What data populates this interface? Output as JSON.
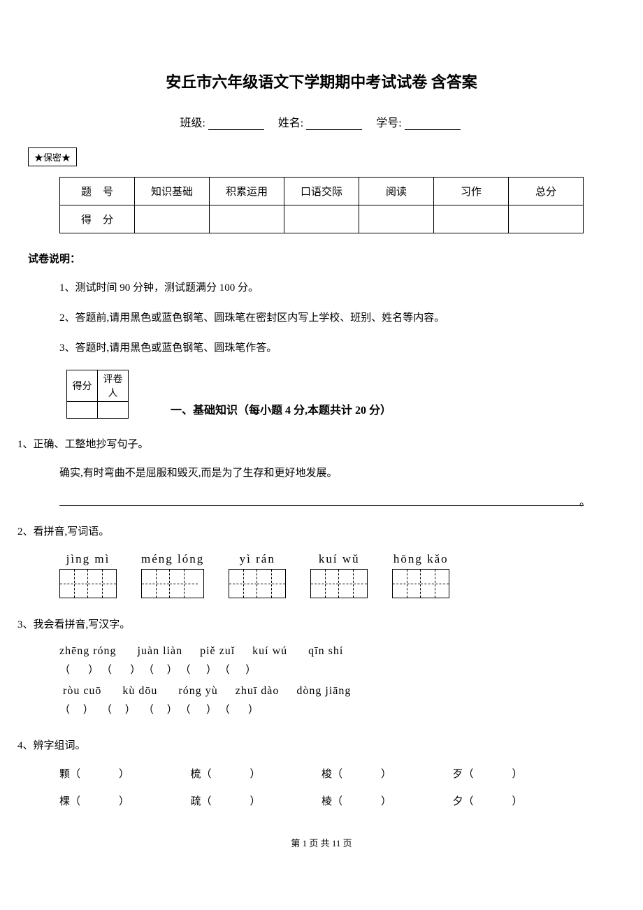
{
  "title": "安丘市六年级语文下学期期中考试试卷 含答案",
  "info": {
    "class_label": "班级:",
    "name_label": "姓名:",
    "id_label": "学号:"
  },
  "secret": "★保密★",
  "score_table": {
    "row1": [
      "题号",
      "知识基础",
      "积累运用",
      "口语交际",
      "阅读",
      "习作",
      "总分"
    ],
    "row2_label": "得分"
  },
  "instructions": {
    "title": "试卷说明：",
    "items": [
      "1、测试时间 90 分钟，测试题满分 100 分。",
      "2、答题前,请用黑色或蓝色钢笔、圆珠笔在密封区内写上学校、班别、姓名等内容。",
      "3、答题时,请用黑色或蓝色钢笔、圆珠笔作答。"
    ]
  },
  "section1": {
    "small_table": [
      "得分",
      "评卷人"
    ],
    "title": "一、基础知识（每小题 4 分,本题共计 20 分）"
  },
  "q1": {
    "label": "1、正确、工整地抄写句子。",
    "text": "确实,有时弯曲不是屈服和毁灭,而是为了生存和更好地发展。",
    "end": "。"
  },
  "q2": {
    "label": "2、看拼音,写词语。",
    "groups": [
      {
        "pinyin": "jìng  mì",
        "boxes": 2
      },
      {
        "pinyin": "méng  lóng",
        "boxes": 2
      },
      {
        "pinyin": "yì  rán",
        "boxes": 2
      },
      {
        "pinyin": "kuí  wǔ",
        "boxes": 2
      },
      {
        "pinyin": "hōng  kǎo",
        "boxes": 2
      }
    ]
  },
  "q3": {
    "label": "3、我会看拼音,写汉字。",
    "row1_pinyin": "zhēng róng      juàn liàn     piě zuǐ     kuí wú      qīn shí",
    "row1_paren": "（       ） （       ） （     ） （      ） （      ）",
    "row2_pinyin": " ròu  cuō      kù dōu      róng yù     zhuī dào     dòng jiāng",
    "row2_paren": "（     ）   （     ）   （     ） （      ） （       ）"
  },
  "q4": {
    "label": "4、辨字组词。",
    "rows": [
      [
        "颗（",
        "梳（",
        "梭（",
        "歹（"
      ],
      [
        "棵（",
        "疏（",
        "棱（",
        "夕（"
      ]
    ]
  },
  "footer": "第 1 页 共 11 页"
}
